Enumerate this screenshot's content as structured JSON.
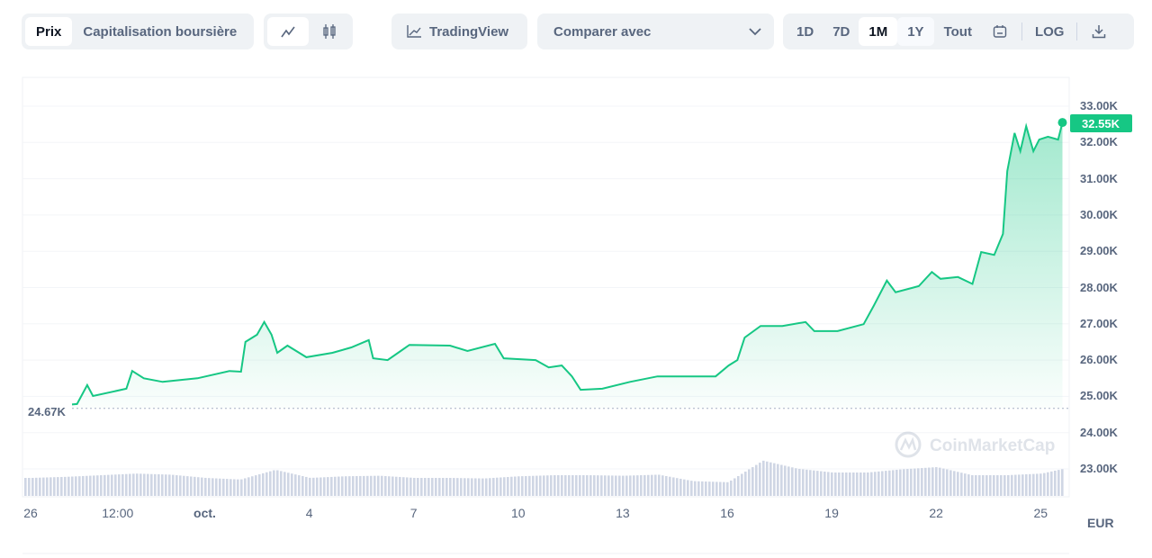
{
  "toolbar": {
    "metric_tabs": [
      "Prix",
      "Capitalisation boursière"
    ],
    "active_metric": "Prix",
    "chart_type_icons": [
      "line-chart-icon",
      "candlestick-icon"
    ],
    "tradingview_label": "TradingView",
    "compare_label": "Comparer avec",
    "ranges": [
      "1D",
      "7D",
      "1M",
      "1Y",
      "Tout"
    ],
    "active_range": "1M",
    "log_label": "LOG"
  },
  "chart_data": {
    "type": "area",
    "currency_label": "EUR",
    "ylim": [
      22500,
      33400
    ],
    "y_ticks": [
      "33.00K",
      "32.00K",
      "31.00K",
      "30.00K",
      "29.00K",
      "28.00K",
      "27.00K",
      "26.00K",
      "25.00K",
      "24.00K",
      "23.00K"
    ],
    "y_tick_values": [
      33000,
      32000,
      31000,
      30000,
      29000,
      28000,
      27000,
      26000,
      25000,
      24000,
      23000
    ],
    "x_ticks": [
      "26",
      "12:00",
      "oct.",
      "4",
      "7",
      "10",
      "13",
      "16",
      "19",
      "22",
      "25"
    ],
    "x_tick_dates": [
      "09-26 00:00",
      "09-28 12:00",
      "10-01 00:00",
      "10-04 00:00",
      "10-07 00:00",
      "10-10 00:00",
      "10-13 00:00",
      "10-16 00:00",
      "10-19 00:00",
      "10-22 00:00",
      "10-25 00:00"
    ],
    "current_price_label": "32.55K",
    "start_price_label": "24.67K",
    "start_price": 24670,
    "line_color": "#16c784",
    "series": [
      {
        "x": [
          "09-25 20:00",
          "09-27 08:00",
          "09-27 15:00",
          "09-27 19:00",
          "09-28 18:00",
          "09-28 22:00",
          "09-29 06:00",
          "09-29 19:00",
          "09-30 19:00",
          "10-01 17:00",
          "10-02 01:00",
          "10-02 04:00",
          "10-02 12:00",
          "10-02 17:00",
          "10-02 22:00",
          "10-03 02:00",
          "10-03 09:00",
          "10-03 22:00",
          "10-04 16:00",
          "10-05 05:00",
          "10-05 17:00",
          "10-05 20:00",
          "10-06 06:00",
          "10-06 15:00",
          "10-06 21:00",
          "10-08 01:00",
          "10-08 13:00",
          "10-09 08:00",
          "10-09 14:00",
          "10-10 12:00",
          "10-10 21:00",
          "10-11 06:00",
          "10-11 13:00",
          "10-11 19:00",
          "10-12 10:00",
          "10-13 05:00",
          "10-14 00:00",
          "10-14 18:00",
          "10-15 16:00",
          "10-16 01:00",
          "10-16 07:00",
          "10-16 12:00",
          "10-16 23:00",
          "10-17 14:00",
          "10-18 06:00",
          "10-18 12:00",
          "10-19 04:00",
          "10-19 22:00",
          "10-20 05:00",
          "10-20 14:00",
          "10-20 20:00",
          "10-21 12:00",
          "10-21 21:00",
          "10-22 03:00",
          "10-22 15:00",
          "10-23 01:00",
          "10-23 07:00",
          "10-23 16:00",
          "10-23 22:00",
          "10-24 01:00",
          "10-24 06:00",
          "10-24 10:00",
          "10-24 14:00",
          "10-24 19:00",
          "10-24 23:00",
          "10-25 05:00",
          "10-25 12:00",
          "10-25 15:00"
        ],
        "y": [
          24670,
          24790,
          25310,
          25010,
          25210,
          25700,
          25500,
          25400,
          25500,
          25700,
          25680,
          26500,
          26700,
          27050,
          26700,
          26200,
          26400,
          26080,
          26200,
          26350,
          26550,
          26050,
          26000,
          26250,
          26420,
          26400,
          26250,
          26450,
          26050,
          26000,
          25800,
          25850,
          25550,
          25180,
          25210,
          25400,
          25550,
          25550,
          25550,
          25850,
          26000,
          26620,
          26940,
          26940,
          27050,
          26800,
          26800,
          26990,
          27500,
          28190,
          27870,
          28040,
          28430,
          28240,
          28290,
          28100,
          28980,
          28900,
          29480,
          31210,
          32260,
          31760,
          32450,
          31760,
          32080,
          32160,
          32080,
          32550
        ]
      }
    ],
    "volume_relative": [
      0.2,
      0.2,
      0.22,
      0.25,
      0.28,
      0.26,
      0.2,
      0.17,
      0.35,
      0.2,
      0.23,
      0.24,
      0.2,
      0.2,
      0.19,
      0.23,
      0.25,
      0.25,
      0.24,
      0.26,
      0.14,
      0.12,
      0.52,
      0.37,
      0.3,
      0.3,
      0.36,
      0.4,
      0.25,
      0.25,
      0.28,
      0.42,
      1.0,
      0.7
    ]
  },
  "watermark": "CoinMarketCap"
}
